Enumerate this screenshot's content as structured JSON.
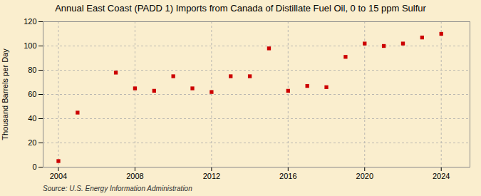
{
  "chart_data": {
    "type": "scatter",
    "title": "Annual East Coast (PADD 1) Imports from Canada of Distillate Fuel Oil, 0 to 15 ppm Sulfur",
    "ylabel": "Thousand Barrels per Day",
    "source": "Source: U.S. Energy Information Administration",
    "x": [
      2004,
      2005,
      2007,
      2008,
      2009,
      2010,
      2011,
      2012,
      2013,
      2014,
      2015,
      2016,
      2017,
      2018,
      2019,
      2020,
      2021,
      2022,
      2023,
      2024
    ],
    "values": [
      5,
      45,
      78,
      65,
      63,
      75,
      65,
      62,
      75,
      75,
      98,
      63,
      67,
      66,
      91,
      102,
      100,
      102,
      107,
      110
    ],
    "color": "#cc0000",
    "marker": "square",
    "xlim": [
      2003.2,
      2025.5
    ],
    "ylim": [
      0,
      120
    ],
    "xticks": [
      2004,
      2008,
      2012,
      2016,
      2020,
      2024
    ],
    "yticks": [
      0,
      20,
      40,
      60,
      80,
      100,
      120
    ],
    "grid": true
  }
}
